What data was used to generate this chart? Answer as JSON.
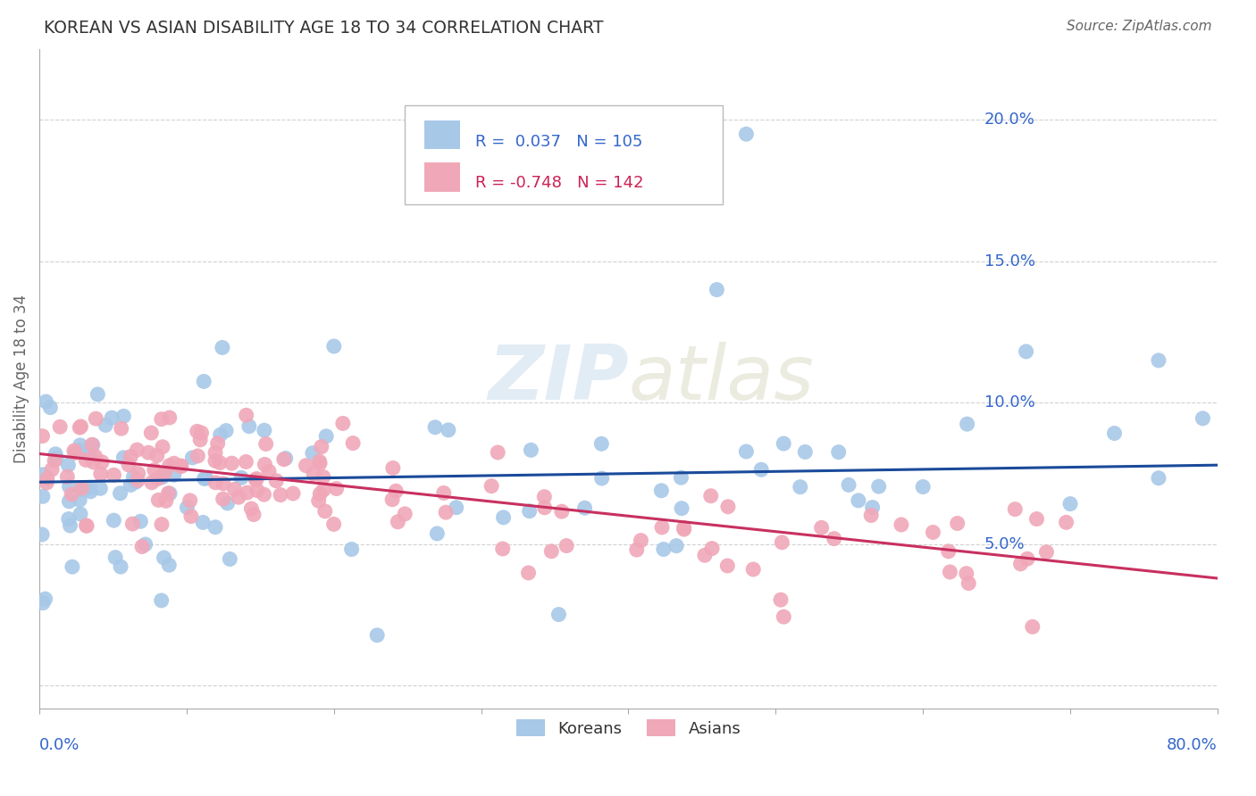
{
  "title": "KOREAN VS ASIAN DISABILITY AGE 18 TO 34 CORRELATION CHART",
  "source": "Source: ZipAtlas.com",
  "ylabel": "Disability Age 18 to 34",
  "xlim": [
    0.0,
    0.8
  ],
  "ylim": [
    -0.008,
    0.225
  ],
  "yticks": [
    0.0,
    0.05,
    0.1,
    0.15,
    0.2
  ],
  "ytick_labels": [
    "",
    "5.0%",
    "10.0%",
    "15.0%",
    "20.0%"
  ],
  "korean_R": 0.037,
  "korean_N": 105,
  "asian_R": -0.748,
  "asian_N": 142,
  "korean_color": "#a8c8e8",
  "korean_line_color": "#1a4a9a",
  "asian_color": "#f0a8b8",
  "asian_line_color": "#c83060",
  "watermark": "ZIPatlas",
  "legend_label_korean": "Koreans",
  "legend_label_asian": "Asians",
  "background_color": "#ffffff",
  "grid_color": "#cccccc",
  "title_color": "#333333",
  "label_color": "#3366cc",
  "korean_trend_y0": 0.072,
  "korean_trend_y1": 0.078,
  "asian_trend_y0": 0.082,
  "asian_trend_y1": 0.038
}
